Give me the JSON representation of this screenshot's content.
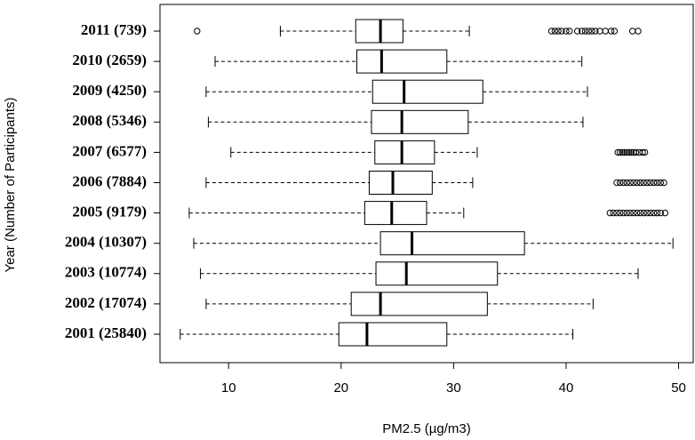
{
  "chart_data": {
    "type": "boxplot",
    "orientation": "horizontal",
    "xlabel": "PM2.5 (µg/m3)",
    "ylabel": "Year (Number of Participants)",
    "categories": [
      "2011 (739)",
      "2010 (2659)",
      "2009 (4250)",
      "2008 (5346)",
      "2007 (6577)",
      "2006 (7884)",
      "2005 (9179)",
      "2004 (10307)",
      "2003 (10774)",
      "2002 (17074)",
      "2001 (25840)"
    ],
    "boxes": [
      {
        "whislo": 14.6,
        "q1": 21.3,
        "med": 23.5,
        "q3": 25.5,
        "whishi": 31.4,
        "fliers": [
          7.2,
          38.7,
          39.0,
          39.3,
          39.6,
          40.0,
          40.3,
          41.0,
          41.4,
          41.7,
          42.0,
          42.3,
          42.6,
          43.0,
          43.5,
          44.0,
          44.3,
          45.9,
          46.4
        ]
      },
      {
        "whislo": 8.8,
        "q1": 21.4,
        "med": 23.6,
        "q3": 29.4,
        "whishi": 41.4,
        "fliers": []
      },
      {
        "whislo": 8.0,
        "q1": 22.8,
        "med": 25.6,
        "q3": 32.6,
        "whishi": 41.9,
        "fliers": []
      },
      {
        "whislo": 8.2,
        "q1": 22.7,
        "med": 25.4,
        "q3": 31.3,
        "whishi": 41.5,
        "fliers": []
      },
      {
        "whislo": 10.2,
        "q1": 23.0,
        "med": 25.4,
        "q3": 28.3,
        "whishi": 32.1,
        "fliers": [
          44.6,
          44.8,
          45.0,
          45.2,
          45.4,
          45.6,
          45.8,
          46.0,
          46.2,
          46.5,
          46.8,
          47.0
        ]
      },
      {
        "whislo": 8.0,
        "q1": 22.5,
        "med": 24.6,
        "q3": 28.1,
        "whishi": 31.7,
        "fliers": [
          44.5,
          44.8,
          45.1,
          45.4,
          45.7,
          46.0,
          46.3,
          46.6,
          46.9,
          47.2,
          47.5,
          47.8,
          48.1,
          48.4,
          48.7
        ]
      },
      {
        "whislo": 6.5,
        "q1": 22.1,
        "med": 24.5,
        "q3": 27.6,
        "whishi": 30.9,
        "fliers": [
          43.9,
          44.2,
          44.5,
          44.8,
          45.1,
          45.4,
          45.7,
          46.0,
          46.3,
          46.6,
          46.9,
          47.2,
          47.5,
          47.8,
          48.1,
          48.4,
          48.8
        ]
      },
      {
        "whislo": 6.9,
        "q1": 23.5,
        "med": 26.3,
        "q3": 36.3,
        "whishi": 49.5,
        "fliers": []
      },
      {
        "whislo": 7.5,
        "q1": 23.1,
        "med": 25.8,
        "q3": 33.9,
        "whishi": 46.4,
        "fliers": []
      },
      {
        "whislo": 8.0,
        "q1": 20.9,
        "med": 23.5,
        "q3": 33.0,
        "whishi": 42.4,
        "fliers": []
      },
      {
        "whislo": 5.7,
        "q1": 19.8,
        "med": 22.3,
        "q3": 29.4,
        "whishi": 40.6,
        "fliers": []
      }
    ],
    "xlim": [
      3.9,
      51.3
    ],
    "xticks": [
      10,
      20,
      30,
      40,
      50
    ],
    "color": "#000000"
  }
}
